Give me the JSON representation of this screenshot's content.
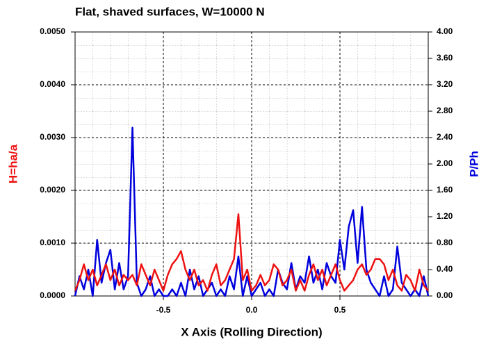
{
  "chart_data": {
    "type": "line",
    "title": "Flat, shaved surfaces, W=10000 N",
    "xlabel": "X Axis (Rolling Direction)",
    "ylabel": "H=ha/a",
    "y2label": "P/Ph",
    "x": [
      -1,
      -0.975,
      -0.95,
      -0.925,
      -0.9,
      -0.875,
      -0.85,
      -0.825,
      -0.8,
      -0.775,
      -0.75,
      -0.725,
      -0.7,
      -0.675,
      -0.65,
      -0.625,
      -0.6,
      -0.575,
      -0.55,
      -0.525,
      -0.5,
      -0.475,
      -0.45,
      -0.425,
      -0.4,
      -0.375,
      -0.35,
      -0.325,
      -0.3,
      -0.275,
      -0.25,
      -0.225,
      -0.2,
      -0.175,
      -0.15,
      -0.125,
      -0.1,
      -0.075,
      -0.05,
      -0.025,
      0,
      0.025,
      0.05,
      0.075,
      0.1,
      0.125,
      0.15,
      0.175,
      0.2,
      0.225,
      0.25,
      0.275,
      0.3,
      0.325,
      0.35,
      0.375,
      0.4,
      0.425,
      0.45,
      0.475,
      0.5,
      0.525,
      0.55,
      0.575,
      0.6,
      0.625,
      0.65,
      0.675,
      0.7,
      0.725,
      0.75,
      0.775,
      0.8,
      0.825,
      0.85,
      0.875,
      0.9,
      0.925,
      0.95,
      0.975,
      1
    ],
    "series": [
      {
        "color": "#0000dd",
        "axis": "y2",
        "values": [
          0,
          0.3,
          0.1,
          0.4,
          0,
          0.85,
          0.2,
          0.5,
          0.7,
          0.1,
          0.5,
          0.1,
          0.3,
          2.55,
          0.2,
          0,
          0.1,
          0.3,
          0,
          0.1,
          0,
          0,
          0.1,
          0,
          0.2,
          0,
          0.4,
          0.1,
          0.3,
          0,
          0.1,
          0.2,
          0,
          0.1,
          0,
          0.3,
          0.1,
          0.6,
          0,
          0.3,
          0,
          0.1,
          0.2,
          0,
          0.1,
          0,
          0.4,
          0.2,
          0.1,
          0.5,
          0.1,
          0.3,
          0.2,
          0.6,
          0.2,
          0.4,
          0.1,
          0.5,
          0.3,
          0.2,
          0.85,
          0.4,
          1.05,
          1.3,
          0.5,
          1.35,
          0.4,
          0.2,
          0.1,
          0,
          0.3,
          0,
          0.1,
          0.75,
          0.2,
          0.1,
          0,
          0.1,
          0,
          0.3,
          0
        ]
      },
      {
        "color": "#ee1111",
        "axis": "y",
        "values": [
          0.0001,
          0.0003,
          0.0006,
          0.0003,
          0.0005,
          0.0002,
          0.0004,
          0.0006,
          0.0003,
          0.0005,
          0.0002,
          0.0004,
          0.0003,
          0.0004,
          0.0002,
          0.0006,
          0.0004,
          0.0002,
          0.0005,
          0.0003,
          0.0001,
          0.0004,
          0.0006,
          0.0007,
          0.00085,
          0.0005,
          0.0003,
          0.0005,
          0.0002,
          0.0003,
          0.0001,
          0.0004,
          0.0006,
          0.0002,
          0.0003,
          0.0005,
          0.0007,
          0.00155,
          0.0003,
          0.0005,
          0.0001,
          0.0002,
          0.0004,
          0.0002,
          0.0003,
          0.0006,
          0.0005,
          0.0002,
          0.0003,
          0.0005,
          0.0001,
          0.0003,
          0.0001,
          0.0004,
          0.0006,
          0.0003,
          0.0005,
          0.0002,
          0.0004,
          0.0006,
          0.0003,
          0.0001,
          0.0002,
          0.0003,
          0.0005,
          0.0006,
          0.0004,
          0.0005,
          0.0007,
          0.0007,
          0.0006,
          0.0003,
          0.0005,
          0.0002,
          0.0001,
          0.0004,
          0.0003,
          0.0001,
          0.0005,
          0.0002,
          0.0001
        ]
      }
    ],
    "xlim": [
      -1,
      1
    ],
    "xticks": [
      -0.5,
      {
        "value": 0,
        "label": "0.0"
      },
      0.5
    ],
    "ylim": [
      0,
      0.005
    ],
    "yticks": [
      {
        "value": 0,
        "label": "0.0000"
      },
      {
        "value": 0.001,
        "label": "0.0010"
      },
      {
        "value": 0.002,
        "label": "0.0020"
      },
      {
        "value": 0.003,
        "label": "0.0030"
      },
      {
        "value": 0.004,
        "label": "0.0040"
      },
      {
        "value": 0.005,
        "label": "0.0050"
      }
    ],
    "y2lim": [
      0,
      4
    ],
    "y2ticks": [
      {
        "value": 0,
        "label": "0.00"
      },
      {
        "value": 0.4,
        "label": "0.40"
      },
      {
        "value": 0.8,
        "label": "0.80"
      },
      {
        "value": 1.2,
        "label": "1.20"
      },
      {
        "value": 1.6,
        "label": "1.60"
      },
      {
        "value": 2,
        "label": "2.00"
      },
      {
        "value": 2.4,
        "label": "2.40"
      },
      {
        "value": 2.8,
        "label": "2.80"
      },
      {
        "value": 3.2,
        "label": "3.20"
      },
      {
        "value": 3.6,
        "label": "3.60"
      },
      {
        "value": 4,
        "label": "4.00"
      }
    ],
    "grid": true
  }
}
